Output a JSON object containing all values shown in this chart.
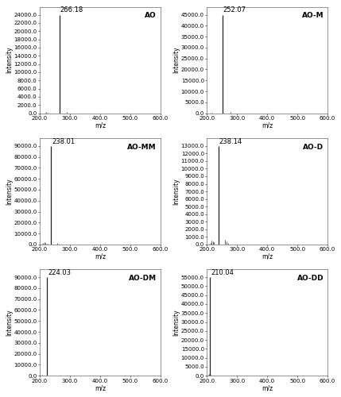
{
  "panels": [
    {
      "label": "AO",
      "main_peak_mz": 266.18,
      "main_peak_intensity": 24000,
      "ymax": 24000,
      "ytick_max": 24000,
      "ytick_step": 2000,
      "small_peaks": [
        {
          "mz": 218,
          "intensity": 180
        },
        {
          "mz": 221,
          "intensity": 250
        },
        {
          "mz": 225,
          "intensity": 130
        },
        {
          "mz": 289,
          "intensity": 350
        }
      ]
    },
    {
      "label": "AO-M",
      "main_peak_mz": 252.07,
      "main_peak_intensity": 45000,
      "ymax": 45000,
      "ytick_max": 45000,
      "ytick_step": 5000,
      "small_peaks": [
        {
          "mz": 213,
          "intensity": 280
        },
        {
          "mz": 217,
          "intensity": 180
        },
        {
          "mz": 277,
          "intensity": 450
        }
      ]
    },
    {
      "label": "AO-MM",
      "main_peak_mz": 238.01,
      "main_peak_intensity": 90000,
      "ymax": 90000,
      "ytick_max": 90000,
      "ytick_step": 10000,
      "small_peaks": [
        {
          "mz": 207,
          "intensity": 700
        },
        {
          "mz": 211,
          "intensity": 1100
        },
        {
          "mz": 215,
          "intensity": 2400
        },
        {
          "mz": 219,
          "intensity": 1700
        },
        {
          "mz": 223,
          "intensity": 850
        },
        {
          "mz": 227,
          "intensity": 550
        },
        {
          "mz": 259,
          "intensity": 1400
        },
        {
          "mz": 264,
          "intensity": 750
        }
      ]
    },
    {
      "label": "AO-D",
      "main_peak_mz": 238.14,
      "main_peak_intensity": 13000,
      "ymax": 13000,
      "ytick_max": 13000,
      "ytick_step": 1000,
      "small_peaks": [
        {
          "mz": 207,
          "intensity": 90
        },
        {
          "mz": 211,
          "intensity": 180
        },
        {
          "mz": 215,
          "intensity": 560
        },
        {
          "mz": 219,
          "intensity": 420
        },
        {
          "mz": 223,
          "intensity": 280
        },
        {
          "mz": 259,
          "intensity": 650
        },
        {
          "mz": 264,
          "intensity": 370
        },
        {
          "mz": 269,
          "intensity": 180
        }
      ]
    },
    {
      "label": "AO-DM",
      "main_peak_mz": 224.03,
      "main_peak_intensity": 90000,
      "ymax": 90000,
      "ytick_max": 90000,
      "ytick_step": 10000,
      "small_peaks": [
        {
          "mz": 205,
          "intensity": 350
        },
        {
          "mz": 209,
          "intensity": 550
        }
      ]
    },
    {
      "label": "AO-DD",
      "main_peak_mz": 210.04,
      "main_peak_intensity": 55000,
      "ymax": 55000,
      "ytick_max": 55000,
      "ytick_step": 5000,
      "small_peaks": [
        {
          "mz": 203,
          "intensity": 750
        },
        {
          "mz": 207,
          "intensity": 1100
        },
        {
          "mz": 212,
          "intensity": 550
        },
        {
          "mz": 229,
          "intensity": 280
        },
        {
          "mz": 259,
          "intensity": 180
        },
        {
          "mz": 309,
          "intensity": 130
        }
      ]
    }
  ],
  "xmin": 200,
  "xmax": 600,
  "xlabel": "m/z",
  "ylabel": "Intensity",
  "xticks": [
    200,
    300,
    400,
    500,
    600
  ],
  "background_color": "#ffffff",
  "line_color": "#222222",
  "peak_label_fontsize": 6.0,
  "panel_label_fontsize": 6.5,
  "tick_fontsize": 5.0,
  "axis_label_fontsize": 5.5
}
